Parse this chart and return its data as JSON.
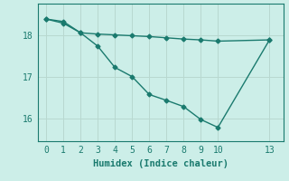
{
  "title": "",
  "xlabel": "Humidex (Indice chaleur)",
  "bg_color": "#cceee8",
  "line_color": "#1a7a6e",
  "grid_color": "#b8d8d0",
  "line1_x": [
    0,
    1,
    2,
    3,
    4,
    5,
    6,
    7,
    8,
    9,
    10,
    13
  ],
  "line1_y": [
    18.38,
    18.32,
    18.05,
    18.02,
    18.0,
    17.98,
    17.96,
    17.93,
    17.9,
    17.88,
    17.85,
    17.88
  ],
  "line2_x": [
    0,
    1,
    2,
    3,
    4,
    5,
    6,
    7,
    8,
    9,
    10,
    13
  ],
  "line2_y": [
    18.38,
    18.28,
    18.05,
    17.73,
    17.22,
    17.0,
    16.57,
    16.43,
    16.28,
    15.97,
    15.78,
    17.88
  ],
  "xlim": [
    -0.5,
    13.8
  ],
  "ylim": [
    15.45,
    18.75
  ],
  "xticks": [
    0,
    1,
    2,
    3,
    4,
    5,
    6,
    7,
    8,
    9,
    10,
    13
  ],
  "yticks": [
    16,
    17,
    18
  ],
  "marker": "D",
  "markersize": 2.5,
  "linewidth": 1.0,
  "tick_fontsize": 7,
  "xlabel_fontsize": 7.5
}
